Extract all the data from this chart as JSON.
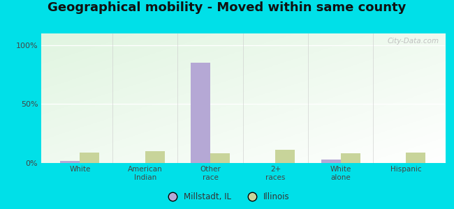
{
  "title": "Geographical mobility - Moved within same county",
  "categories": [
    "White",
    "American\nIndian",
    "Other\nrace",
    "2+\nraces",
    "White\nalone",
    "Hispanic"
  ],
  "millstadt_values": [
    2,
    0,
    85,
    0,
    3,
    0
  ],
  "illinois_values": [
    9,
    10,
    8,
    11,
    8,
    9
  ],
  "millstadt_color": "#b5a8d5",
  "illinois_color": "#c8d49a",
  "plot_bg_colors": [
    "#e8f5e0",
    "#f8fdf5"
  ],
  "title_fontsize": 13,
  "ylabel_ticks": [
    "0%",
    "50%",
    "100%"
  ],
  "ylabel_vals": [
    0,
    50,
    100
  ],
  "ylim": [
    0,
    110
  ],
  "bar_width": 0.3,
  "watermark": "City-Data.com",
  "legend_millstadt": "Millstadt, IL",
  "legend_illinois": "Illinois",
  "outer_bg": "#00e0e8"
}
